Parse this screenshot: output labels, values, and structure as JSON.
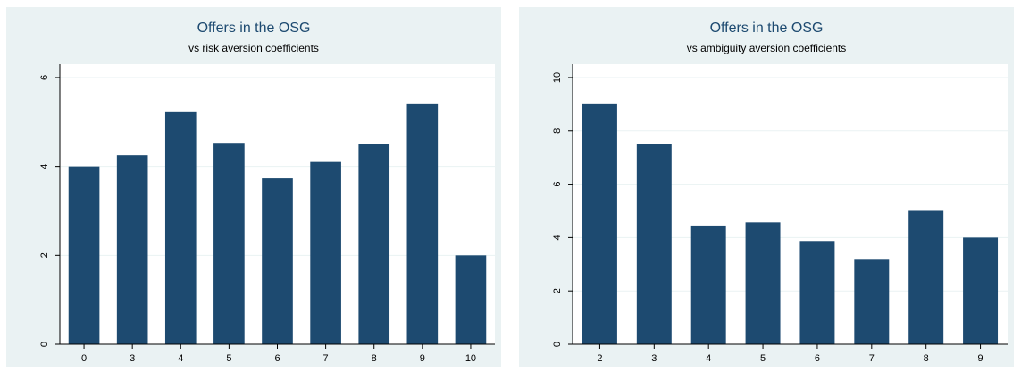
{
  "colors": {
    "bar": "#1d4a70",
    "panel_bg": "#eaf2f3",
    "plot_bg": "#ffffff",
    "grid": "#eaf2f3"
  },
  "chart_data": [
    {
      "type": "bar",
      "title": "Offers in the OSG",
      "subtitle": "vs risk aversion coefficients",
      "xlabel": "",
      "ylabel": "",
      "categories": [
        "0",
        "3",
        "4",
        "5",
        "6",
        "7",
        "8",
        "9",
        "10"
      ],
      "values": [
        4.0,
        4.25,
        5.22,
        4.53,
        3.73,
        4.1,
        4.5,
        5.4,
        2.0
      ],
      "ylim": [
        0,
        6.3
      ],
      "yticks": [
        0,
        2,
        4,
        6
      ],
      "grid": true
    },
    {
      "type": "bar",
      "title": "Offers in the OSG",
      "subtitle": "vs ambiguity aversion coefficients",
      "xlabel": "",
      "ylabel": "",
      "categories": [
        "2",
        "3",
        "4",
        "5",
        "6",
        "7",
        "8",
        "9"
      ],
      "values": [
        9.0,
        7.5,
        4.45,
        4.57,
        3.87,
        3.2,
        5.0,
        4.0
      ],
      "ylim": [
        0,
        10.5
      ],
      "yticks": [
        0,
        2,
        4,
        6,
        8,
        10
      ],
      "grid": true
    }
  ]
}
